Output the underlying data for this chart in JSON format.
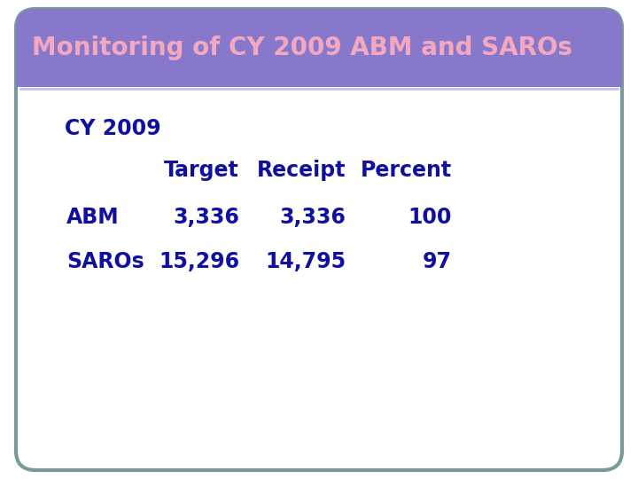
{
  "title": "Monitoring of CY 2009 ABM and SAROs",
  "title_bg_color": "#8878CC",
  "title_text_color": "#F4A8C0",
  "outer_border_color": "#7A9A9A",
  "inner_bg_color": "#FFFFFF",
  "outer_bg_color": "#FFFFFF",
  "content_text_color": "#1010A0",
  "cy_label": "CY 2009",
  "col_headers": [
    "Target",
    "Receipt",
    "Percent"
  ],
  "row_labels": [
    "ABM",
    "SAROs"
  ],
  "data": [
    [
      "3,336",
      "3,336",
      "100"
    ],
    [
      "15,296",
      "14,795",
      "97"
    ]
  ],
  "title_fontsize": 20,
  "content_fontsize": 17,
  "separator_color": "#C0C0F0"
}
